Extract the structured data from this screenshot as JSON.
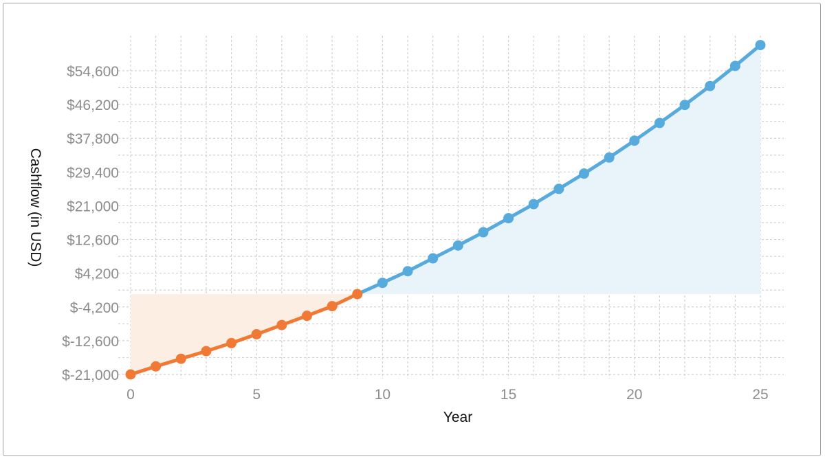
{
  "chart_data": {
    "type": "line",
    "title": "",
    "xlabel": "Year",
    "ylabel": "Cashflow (in USD)",
    "xlim": [
      0,
      25
    ],
    "ylim": [
      -21000,
      58000
    ],
    "x_ticks": [
      "0",
      "5",
      "10",
      "15",
      "20",
      "25"
    ],
    "y_ticks": [
      "$-21,000",
      "$-12,600",
      "$-4,200",
      "$4,200",
      "$12,600",
      "$21,000",
      "$29,400",
      "$37,800",
      "$46,200",
      "$54,600"
    ],
    "grid": true,
    "legend": "none",
    "colors": {
      "negative": "#f07a35",
      "positive": "#56aadc",
      "negative_fill": "#fdeee4",
      "positive_fill": "#e9f3fa",
      "grid": "#d0d0d0"
    },
    "x": [
      0,
      1,
      2,
      3,
      4,
      5,
      6,
      7,
      8,
      9,
      10,
      11,
      12,
      13,
      14,
      15,
      16,
      17,
      18,
      19,
      20,
      21,
      22,
      23,
      24,
      25
    ],
    "values": [
      -21000,
      -19000,
      -17100,
      -15200,
      -13200,
      -11000,
      -8700,
      -6400,
      -4000,
      -1000,
      1800,
      4700,
      7900,
      11100,
      14400,
      17900,
      21400,
      25200,
      29000,
      33000,
      37200,
      41600,
      46100,
      50800,
      55800,
      61000
    ]
  }
}
